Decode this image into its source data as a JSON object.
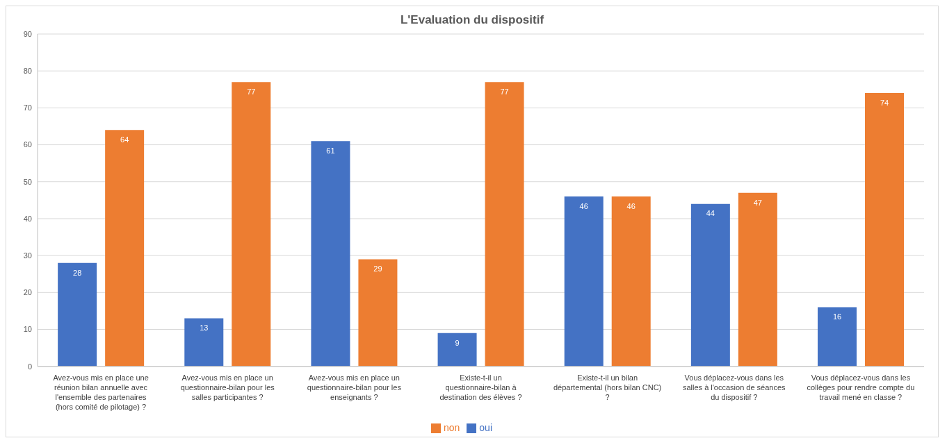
{
  "chart_data": {
    "type": "bar",
    "title": "L'Evaluation du dispositif",
    "categories": [
      "Avez-vous mis en place une réunion bilan annuelle avec l'ensemble des partenaires (hors comité de pilotage) ?",
      "Avez-vous mis en place un questionnaire-bilan pour les salles participantes ?",
      "Avez-vous mis en place un questionnaire-bilan pour les enseignants ?",
      "Existe-t-il un questionnaire-bilan à destination des élèves ?",
      "Existe-t-il un bilan départemental (hors bilan CNC) ?",
      "Vous déplacez-vous dans les salles à l'occasion de séances du dispositif ?",
      "Vous déplacez-vous dans les collèges pour rendre compte du travail mené en classe ?"
    ],
    "series": [
      {
        "name": "oui",
        "color": "#4472c4",
        "values": [
          28,
          13,
          61,
          9,
          46,
          44,
          16
        ]
      },
      {
        "name": "non",
        "color": "#ed7d31",
        "values": [
          64,
          77,
          29,
          77,
          46,
          47,
          74
        ]
      }
    ],
    "ylim": [
      0,
      90
    ],
    "yticks": [
      0,
      10,
      20,
      30,
      40,
      50,
      60,
      70,
      80,
      90
    ],
    "grid": "y",
    "legend": "bottom",
    "data_labels": true
  }
}
